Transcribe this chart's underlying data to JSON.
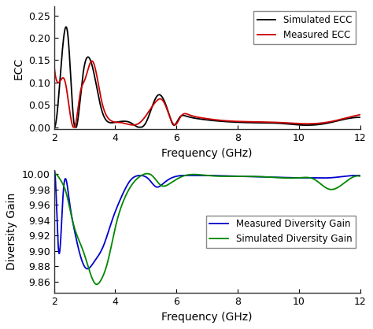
{
  "fig_width": 4.74,
  "fig_height": 4.18,
  "dpi": 100,
  "bg_color": "#ffffff",
  "top_plot": {
    "xlabel": "Frequency (GHz)",
    "ylabel": "ECC",
    "xlim": [
      2,
      12
    ],
    "ylim": [
      -0.005,
      0.27
    ],
    "yticks": [
      0.0,
      0.05,
      0.1,
      0.15,
      0.2,
      0.25
    ],
    "xticks": [
      2,
      4,
      6,
      8,
      10,
      12
    ],
    "simulated_color": "#000000",
    "measured_color": "#cc0000",
    "legend_labels": [
      "Simulated ECC",
      "Measured ECC"
    ]
  },
  "bottom_plot": {
    "xlabel": "Frequency (GHz)",
    "ylabel": "Diversity Gain",
    "xlim": [
      2,
      12
    ],
    "ylim": [
      9.845,
      10.005
    ],
    "yticks": [
      9.86,
      9.88,
      9.9,
      9.92,
      9.94,
      9.96,
      9.98,
      10.0
    ],
    "xticks": [
      2,
      4,
      6,
      8,
      10,
      12
    ],
    "measured_color": "#0000cc",
    "simulated_color": "#008800",
    "legend_labels": [
      "Measured Diversity Gain",
      "Simulated Diversity Gain"
    ]
  }
}
